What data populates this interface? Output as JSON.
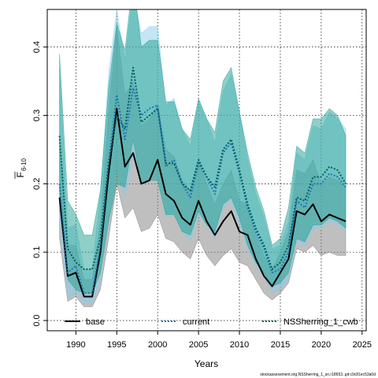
{
  "chart_data": {
    "type": "line",
    "xlabel": "Years",
    "ylabel_main": "F",
    "ylabel_sub": "6-10",
    "xlim": [
      1986.5,
      2025.5
    ],
    "ylim": [
      -0.015,
      0.455
    ],
    "x_ticks": [
      1990,
      1995,
      2000,
      2005,
      2010,
      2015,
      2020,
      2025
    ],
    "y_ticks": [
      0.0,
      0.1,
      0.2,
      0.3,
      0.4
    ],
    "y_tick_labels": [
      "0.0",
      "0.1",
      "0.2",
      "0.3",
      "0.4"
    ],
    "grid": true,
    "legend_position": "bottom",
    "footer": "stockassessment.org,NSSherring_1_sn,r18653..git:c9c81ec53a0d",
    "x": [
      1988,
      1989,
      1990,
      1991,
      1992,
      1993,
      1994,
      1995,
      1996,
      1997,
      1998,
      1999,
      2000,
      2001,
      2002,
      2003,
      2004,
      2005,
      2006,
      2007,
      2008,
      2009,
      2010,
      2011,
      2012,
      2013,
      2014,
      2015,
      2016,
      2017,
      2018,
      2019,
      2020,
      2021,
      2022,
      2023
    ],
    "series": [
      {
        "name": "base",
        "color": "#000000",
        "band_color": "#808080",
        "line_style": "solid",
        "values": [
          0.18,
          0.065,
          0.07,
          0.035,
          0.035,
          0.1,
          0.215,
          0.31,
          0.225,
          0.245,
          0.2,
          0.205,
          0.235,
          0.185,
          0.175,
          0.15,
          0.14,
          0.175,
          0.145,
          0.125,
          0.145,
          0.16,
          0.13,
          0.125,
          0.09,
          0.065,
          0.05,
          0.07,
          0.09,
          0.16,
          0.155,
          0.17,
          0.145,
          0.155,
          0.15,
          0.145
        ],
        "lower": [
          0.12,
          0.028,
          0.035,
          0.02,
          0.02,
          0.045,
          0.12,
          0.2,
          0.15,
          0.165,
          0.13,
          0.135,
          0.155,
          0.12,
          0.115,
          0.1,
          0.09,
          0.12,
          0.095,
          0.08,
          0.095,
          0.105,
          0.085,
          0.08,
          0.06,
          0.04,
          0.03,
          0.04,
          0.055,
          0.105,
          0.1,
          0.11,
          0.095,
          0.1,
          0.095,
          0.095
        ],
        "upper": [
          0.26,
          0.11,
          0.11,
          0.06,
          0.06,
          0.145,
          0.305,
          0.43,
          0.33,
          0.35,
          0.285,
          0.295,
          0.315,
          0.25,
          0.24,
          0.205,
          0.19,
          0.235,
          0.2,
          0.17,
          0.2,
          0.22,
          0.175,
          0.17,
          0.125,
          0.095,
          0.075,
          0.1,
          0.13,
          0.22,
          0.215,
          0.235,
          0.2,
          0.21,
          0.205,
          0.195
        ]
      },
      {
        "name": "current",
        "color": "#1f77b4",
        "band_color": "#87ceeb",
        "line_style": "dotted",
        "values": [
          0.2,
          0.07,
          0.08,
          0.04,
          0.04,
          0.11,
          0.23,
          0.33,
          0.265,
          0.34,
          0.3,
          0.31,
          0.315,
          0.225,
          0.235,
          0.2,
          0.18,
          0.23,
          0.21,
          0.185,
          0.245,
          0.26,
          0.215,
          0.165,
          0.13,
          0.105,
          0.07,
          0.075,
          0.1,
          0.175,
          0.165,
          0.2,
          0.2,
          0.215,
          0.21,
          0.195
        ],
        "lower": [
          0.15,
          0.03,
          0.04,
          0.025,
          0.025,
          0.055,
          0.14,
          0.225,
          0.18,
          0.24,
          0.2,
          0.21,
          0.21,
          0.15,
          0.155,
          0.13,
          0.115,
          0.155,
          0.14,
          0.12,
          0.165,
          0.175,
          0.14,
          0.105,
          0.08,
          0.065,
          0.04,
          0.045,
          0.06,
          0.115,
          0.11,
          0.135,
          0.135,
          0.145,
          0.14,
          0.13
        ],
        "upper": [
          0.37,
          0.135,
          0.14,
          0.075,
          0.075,
          0.185,
          0.36,
          0.455,
          0.38,
          0.48,
          0.42,
          0.43,
          0.43,
          0.315,
          0.325,
          0.28,
          0.255,
          0.32,
          0.295,
          0.26,
          0.335,
          0.36,
          0.305,
          0.235,
          0.185,
          0.15,
          0.105,
          0.11,
          0.145,
          0.245,
          0.235,
          0.285,
          0.28,
          0.305,
          0.295,
          0.28
        ]
      },
      {
        "name": "NSSherring_1_cwb",
        "color": "#005f5f",
        "band_color": "#20a090",
        "line_style": "dotted",
        "values": [
          0.27,
          0.105,
          0.085,
          0.075,
          0.075,
          0.12,
          0.23,
          0.3,
          0.28,
          0.37,
          0.29,
          0.3,
          0.31,
          0.23,
          0.23,
          0.2,
          0.19,
          0.235,
          0.21,
          0.195,
          0.25,
          0.265,
          0.22,
          0.17,
          0.135,
          0.11,
          0.075,
          0.085,
          0.11,
          0.18,
          0.175,
          0.21,
          0.21,
          0.225,
          0.22,
          0.2
        ],
        "lower": [
          0.19,
          0.06,
          0.045,
          0.04,
          0.04,
          0.07,
          0.145,
          0.2,
          0.195,
          0.265,
          0.2,
          0.205,
          0.205,
          0.155,
          0.155,
          0.13,
          0.125,
          0.16,
          0.14,
          0.13,
          0.17,
          0.18,
          0.15,
          0.11,
          0.085,
          0.07,
          0.05,
          0.055,
          0.07,
          0.12,
          0.115,
          0.14,
          0.14,
          0.15,
          0.145,
          0.135
        ],
        "upper": [
          0.39,
          0.175,
          0.155,
          0.125,
          0.125,
          0.19,
          0.34,
          0.435,
          0.395,
          0.5,
          0.4,
          0.41,
          0.41,
          0.32,
          0.32,
          0.28,
          0.265,
          0.325,
          0.295,
          0.275,
          0.35,
          0.37,
          0.305,
          0.245,
          0.195,
          0.16,
          0.11,
          0.12,
          0.165,
          0.255,
          0.245,
          0.295,
          0.295,
          0.31,
          0.3,
          0.27
        ]
      }
    ]
  }
}
